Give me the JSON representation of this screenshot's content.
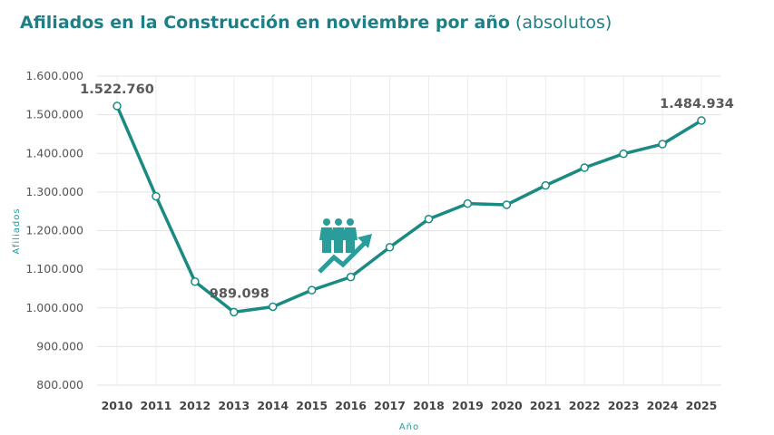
{
  "chart_data": {
    "type": "line",
    "title": "Afiliados en la Construcción en noviembre por año",
    "subtitle": "(absolutos)",
    "xlabel": "Año",
    "ylabel": "Afiliados",
    "ylim": [
      800000,
      1600000
    ],
    "yticks": [
      "800.000",
      "900.000",
      "1.000.000",
      "1.100.000",
      "1.200.000",
      "1.300.000",
      "1.400.000",
      "1.500.000",
      "1.600.000"
    ],
    "ytick_values": [
      800000,
      900000,
      1000000,
      1100000,
      1200000,
      1300000,
      1400000,
      1500000,
      1600000
    ],
    "categories": [
      "2010",
      "2011",
      "2012",
      "2013",
      "2014",
      "2015",
      "2016",
      "2017",
      "2018",
      "2019",
      "2020",
      "2021",
      "2022",
      "2023",
      "2024",
      "2025"
    ],
    "values": [
      1522760,
      1289000,
      1068000,
      989098,
      1003000,
      1046000,
      1080000,
      1157000,
      1230000,
      1270000,
      1267000,
      1317000,
      1363000,
      1399000,
      1424000,
      1484934
    ],
    "data_labels": [
      {
        "index": 0,
        "text": "1.522.760"
      },
      {
        "index": 3,
        "text": "989.098"
      },
      {
        "index": 15,
        "text": "1.484.934"
      }
    ],
    "grid": true,
    "legend": "none",
    "line_color": "#1a8a82",
    "icon": "people-growth-icon"
  }
}
